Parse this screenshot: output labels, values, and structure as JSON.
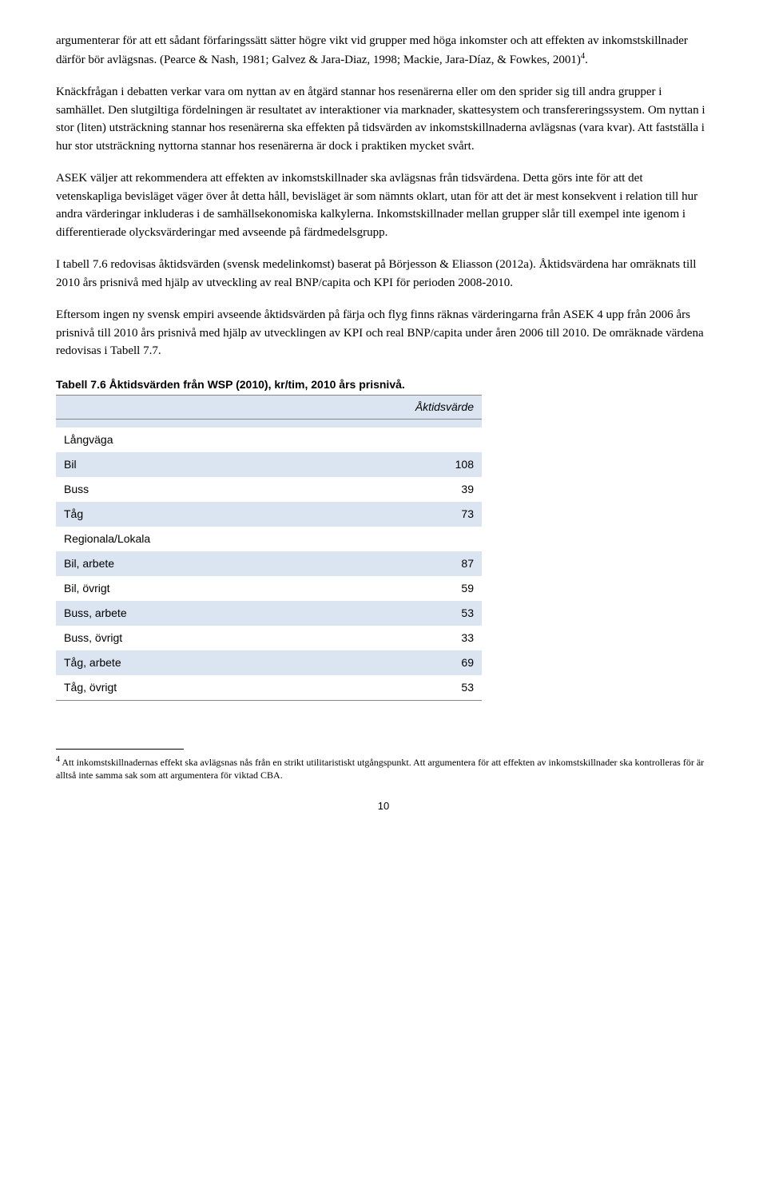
{
  "paragraphs": {
    "p1": "argumenterar för att ett sådant förfaringssätt sätter högre vikt vid grupper med höga inkomster och att effekten av inkomstskillnader därför bör avlägsnas. (Pearce & Nash, 1981; Galvez & Jara-Diaz, 1998; Mackie, Jara-Díaz, & Fowkes, 2001)",
    "p1_sup": "4",
    "p1_after": ".",
    "p2": "Knäckfrågan i debatten verkar vara om nyttan av en åtgärd stannar hos resenärerna eller om den sprider sig till andra grupper i samhället. Den slutgiltiga fördelningen är resultatet av interaktioner via marknader, skattesystem och transfereringssystem. Om nyttan i stor (liten) utsträckning stannar hos resenärerna ska effekten på tidsvärden av inkomstskillnaderna avlägsnas (vara kvar). Att fastställa i hur stor utsträckning nyttorna stannar hos resenärerna är dock i praktiken mycket svårt.",
    "p3": "ASEK väljer att rekommendera att effekten av inkomstskillnader ska avlägsnas från tidsvärdena. Detta görs inte för att det vetenskapliga bevisläget väger över åt detta håll, bevisläget är som nämnts oklart, utan för att det är mest konsekvent i relation till hur andra värderingar inkluderas i de samhällsekonomiska kalkylerna. Inkomstskillnader mellan grupper slår till exempel inte igenom i differentierade olycksvärderingar med avseende på färdmedelsgrupp.",
    "p4": "I tabell 7.6 redovisas åktidsvärden (svensk medelinkomst) baserat på Börjesson & Eliasson (2012a). Åktidsvärdena har omräknats till 2010 års prisnivå med hjälp av utveckling av real BNP/capita och KPI för perioden 2008-2010.",
    "p5": "Eftersom ingen ny svensk empiri avseende åktidsvärden på färja och flyg finns räknas värderingarna från ASEK 4 upp från 2006 års prisnivå till 2010 års prisnivå med hjälp av utvecklingen av KPI och real BNP/capita under åren 2006 till 2010. De omräknade värdena redovisas i Tabell 7.7."
  },
  "table": {
    "caption": "Tabell 7.6 Åktidsvärden från WSP (2010), kr/tim, 2010 års prisnivå.",
    "header": "Åktidsvärde",
    "rows": [
      {
        "label": "Långväga",
        "value": "",
        "shaded": false,
        "section": true
      },
      {
        "label": "Bil",
        "value": "108",
        "shaded": true,
        "section": false
      },
      {
        "label": "Buss",
        "value": "39",
        "shaded": false,
        "section": false
      },
      {
        "label": "Tåg",
        "value": "73",
        "shaded": true,
        "section": false
      },
      {
        "label": "Regionala/Lokala",
        "value": "",
        "shaded": false,
        "section": true
      },
      {
        "label": "Bil, arbete",
        "value": "87",
        "shaded": true,
        "section": false
      },
      {
        "label": "Bil, övrigt",
        "value": "59",
        "shaded": false,
        "section": false
      },
      {
        "label": "Buss, arbete",
        "value": "53",
        "shaded": true,
        "section": false
      },
      {
        "label": "Buss, övrigt",
        "value": "33",
        "shaded": false,
        "section": false
      },
      {
        "label": "Tåg, arbete",
        "value": "69",
        "shaded": true,
        "section": false
      },
      {
        "label": "Tåg, övrigt",
        "value": "53",
        "shaded": false,
        "section": false
      }
    ]
  },
  "footnote": {
    "marker": "4",
    "text": " Att inkomstskillnadernas effekt ska avlägsnas nås från en strikt utilitaristiskt utgångspunkt. Att argumentera för att effekten av inkomstskillnader ska kontrolleras för är alltså inte samma sak som att argumentera för viktad CBA."
  },
  "page_number": "10"
}
